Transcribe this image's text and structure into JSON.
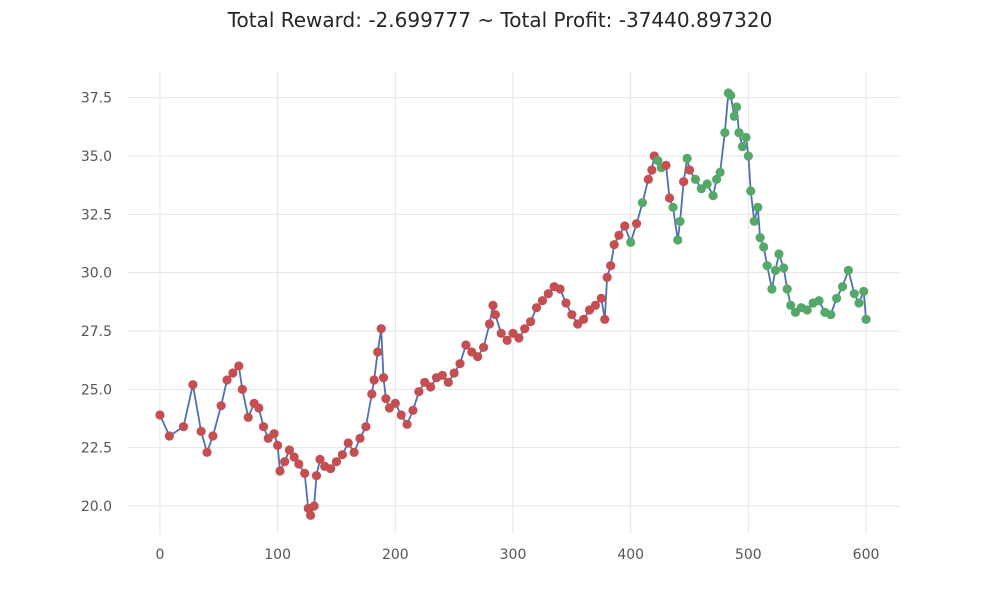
{
  "chart_data": {
    "type": "line",
    "title": "Total Reward: -2.699777 ~ Total Profit: -37440.897320",
    "xlabel": "",
    "ylabel": "",
    "xlim": [
      -28,
      628
    ],
    "ylim": [
      18.8,
      38.6
    ],
    "x_ticks": [
      0,
      100,
      200,
      300,
      400,
      500,
      600
    ],
    "y_ticks": [
      20.0,
      22.5,
      25.0,
      27.5,
      30.0,
      32.5,
      35.0,
      37.5
    ],
    "grid": true,
    "legend": "none",
    "colors": {
      "line": "#4c72b0",
      "short_marker": "#c44e52",
      "long_marker": "#55a868",
      "grid": "#e5e5e5",
      "tick_text": "#555555"
    },
    "series": [
      {
        "x": [
          0,
          8,
          20,
          28,
          35,
          40,
          45,
          52,
          57,
          62,
          67,
          70,
          75,
          80,
          84,
          88,
          92,
          97,
          100,
          102,
          106,
          110,
          114,
          118,
          123,
          126,
          128,
          131,
          133,
          136,
          140,
          145,
          150,
          155,
          160,
          165,
          170,
          175,
          180,
          182,
          185,
          188,
          190,
          192,
          195,
          200,
          205,
          210,
          215,
          220,
          225,
          230,
          235,
          240,
          245,
          250,
          255,
          260,
          265,
          270,
          275,
          280,
          283,
          285,
          290,
          295,
          300,
          305,
          310,
          315,
          320,
          325,
          330,
          335,
          340,
          345,
          350,
          355,
          360,
          365,
          370,
          375,
          378,
          380,
          383,
          386,
          390,
          395,
          400,
          405,
          410,
          415,
          418,
          420,
          423,
          426,
          430,
          433,
          436,
          440,
          442,
          445,
          448,
          450,
          455,
          460,
          465,
          470,
          473,
          476,
          480,
          483,
          485,
          488,
          490,
          492,
          495,
          498,
          500,
          502,
          505,
          508,
          510,
          513,
          516,
          520,
          523,
          526,
          530,
          533,
          536,
          540,
          545,
          550,
          555,
          560,
          565,
          570,
          575,
          580,
          585,
          590,
          594,
          598,
          600
        ],
        "values": [
          23.9,
          23.0,
          23.4,
          25.2,
          23.2,
          22.3,
          23.0,
          24.3,
          25.4,
          25.7,
          26.0,
          25.0,
          23.8,
          24.4,
          24.2,
          23.4,
          22.9,
          23.1,
          22.6,
          21.5,
          21.9,
          22.4,
          22.1,
          21.8,
          21.4,
          19.9,
          19.6,
          20.0,
          21.3,
          22.0,
          21.7,
          21.6,
          21.9,
          22.2,
          22.7,
          22.3,
          22.9,
          23.4,
          24.8,
          25.4,
          26.6,
          27.6,
          25.5,
          24.6,
          24.2,
          24.4,
          23.9,
          23.5,
          24.1,
          24.9,
          25.3,
          25.1,
          25.5,
          25.6,
          25.3,
          25.7,
          26.1,
          26.9,
          26.6,
          26.4,
          26.8,
          27.8,
          28.6,
          28.2,
          27.4,
          27.1,
          27.4,
          27.2,
          27.6,
          27.9,
          28.5,
          28.8,
          29.1,
          29.4,
          29.3,
          28.7,
          28.2,
          27.8,
          28.0,
          28.4,
          28.6,
          28.9,
          28.0,
          29.8,
          30.3,
          31.2,
          31.6,
          32.0,
          31.3,
          32.1,
          33.0,
          34.0,
          34.4,
          35.0,
          34.8,
          34.5,
          34.6,
          33.2,
          32.8,
          31.4,
          32.2,
          33.9,
          34.9,
          34.4,
          34.0,
          33.6,
          33.8,
          33.3,
          34.0,
          34.3,
          36.0,
          37.7,
          37.6,
          36.7,
          37.1,
          36.0,
          35.4,
          35.8,
          35.0,
          33.5,
          32.2,
          32.8,
          31.5,
          31.1,
          30.3,
          29.3,
          30.1,
          30.8,
          30.2,
          29.3,
          28.6,
          28.3,
          28.5,
          28.4,
          28.7,
          28.8,
          28.3,
          28.2,
          28.9,
          29.4,
          30.1,
          29.1,
          28.7,
          29.2,
          28.0
        ],
        "markers": [
          "short",
          "short",
          "short",
          "short",
          "short",
          "short",
          "short",
          "short",
          "short",
          "short",
          "short",
          "short",
          "short",
          "short",
          "short",
          "short",
          "short",
          "short",
          "short",
          "short",
          "short",
          "short",
          "short",
          "short",
          "short",
          "short",
          "short",
          "short",
          "short",
          "short",
          "short",
          "short",
          "short",
          "short",
          "short",
          "short",
          "short",
          "short",
          "short",
          "short",
          "short",
          "short",
          "short",
          "short",
          "short",
          "short",
          "short",
          "short",
          "short",
          "short",
          "short",
          "short",
          "short",
          "short",
          "short",
          "short",
          "short",
          "short",
          "short",
          "short",
          "short",
          "short",
          "short",
          "short",
          "short",
          "short",
          "short",
          "short",
          "short",
          "short",
          "short",
          "short",
          "short",
          "short",
          "short",
          "short",
          "short",
          "short",
          "short",
          "short",
          "short",
          "short",
          "short",
          "short",
          "short",
          "short",
          "short",
          "short",
          "long",
          "short",
          "long",
          "short",
          "short",
          "short",
          "long",
          "long",
          "short",
          "short",
          "long",
          "long",
          "long",
          "short",
          "long",
          "short",
          "long",
          "long",
          "long",
          "long",
          "long",
          "long",
          "long",
          "long",
          "long",
          "long",
          "long",
          "long",
          "long",
          "long",
          "long",
          "long",
          "long",
          "long",
          "long",
          "long",
          "long",
          "long",
          "long",
          "long",
          "long",
          "long",
          "long",
          "long",
          "long",
          "long",
          "long",
          "long",
          "long",
          "long",
          "long",
          "long",
          "long",
          "long",
          "long",
          "long",
          "long"
        ]
      }
    ]
  }
}
